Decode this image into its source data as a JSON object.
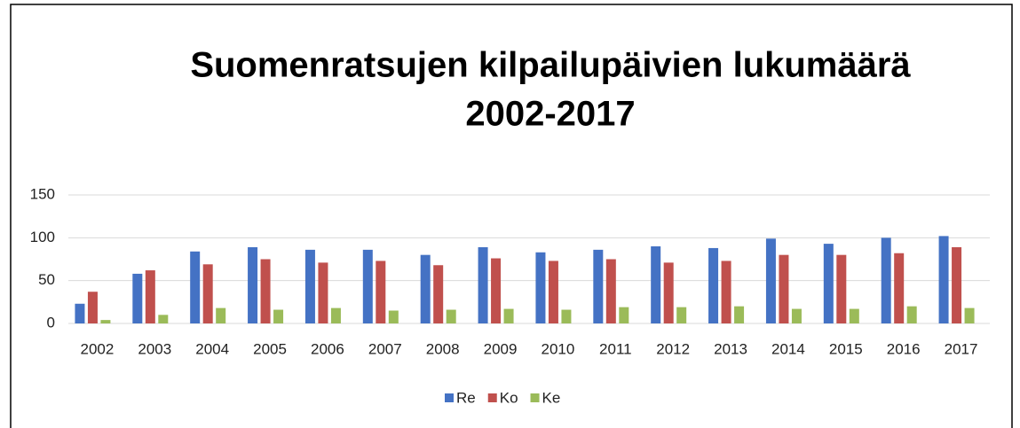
{
  "chart_data": {
    "type": "bar",
    "title": [
      "Suomenratsujen kilpailupäivien lukumäärä",
      "2002-2017"
    ],
    "categories": [
      "2002",
      "2003",
      "2004",
      "2005",
      "2006",
      "2007",
      "2008",
      "2009",
      "2010",
      "2011",
      "2012",
      "2013",
      "2014",
      "2015",
      "2016",
      "2017"
    ],
    "series": [
      {
        "name": "Re",
        "color": "#4472c4",
        "values": [
          23,
          58,
          84,
          89,
          86,
          86,
          80,
          89,
          83,
          86,
          90,
          88,
          99,
          93,
          100,
          102
        ]
      },
      {
        "name": "Ko",
        "color": "#c0504d",
        "values": [
          37,
          62,
          69,
          75,
          71,
          73,
          68,
          76,
          73,
          75,
          71,
          73,
          80,
          80,
          82,
          89
        ]
      },
      {
        "name": "Ke",
        "color": "#9bbb59",
        "values": [
          4,
          10,
          18,
          16,
          18,
          15,
          16,
          17,
          16,
          19,
          19,
          20,
          17,
          17,
          20,
          18
        ]
      }
    ],
    "ylim": [
      0,
      150
    ],
    "yticks": [
      0,
      50,
      100,
      150
    ],
    "grid": true,
    "legend": "bottom"
  }
}
